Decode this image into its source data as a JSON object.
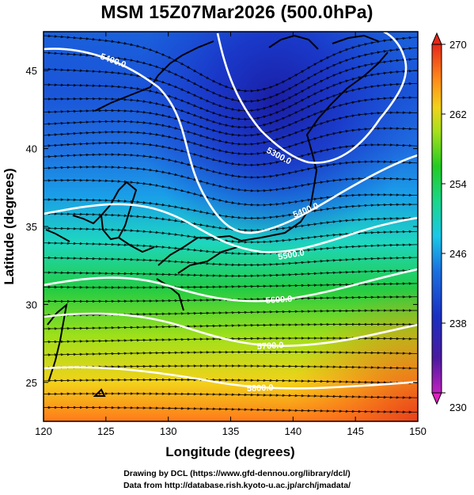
{
  "title": "MSM 15Z07Mar2026 (500.0hPa)",
  "credits": [
    "Drawing by DCL (https://www.gfd-dennou.org/library/dcl/)",
    "Data from http://database.rish.kyoto-u.ac.jp/arch/jmadata/"
  ],
  "chart_data": {
    "type": "heatmap",
    "title": "MSM 15Z07Mar2026 (500.0hPa)",
    "xlabel": "Longitude (degrees)",
    "ylabel": "Latitude  (degrees)",
    "xlim": [
      120,
      150
    ],
    "ylim": [
      22.5,
      47.5
    ],
    "xticks": [
      "120",
      "125",
      "130",
      "135",
      "140",
      "145",
      "150"
    ],
    "yticks": [
      "25",
      "30",
      "35",
      "40",
      "45"
    ],
    "colorbar": {
      "range": [
        230,
        270
      ],
      "ticks": [
        "230",
        "238",
        "246",
        "254",
        "262",
        "270"
      ]
    },
    "contour_labels": [
      "5400.0",
      "5300.0",
      "5400.0",
      "5500.0",
      "5600.0",
      "5700.0",
      "5800.0"
    ],
    "colors": {
      "cold": "#1a2fc4",
      "warm": "#e8541a",
      "contour": "#ffffff"
    }
  }
}
